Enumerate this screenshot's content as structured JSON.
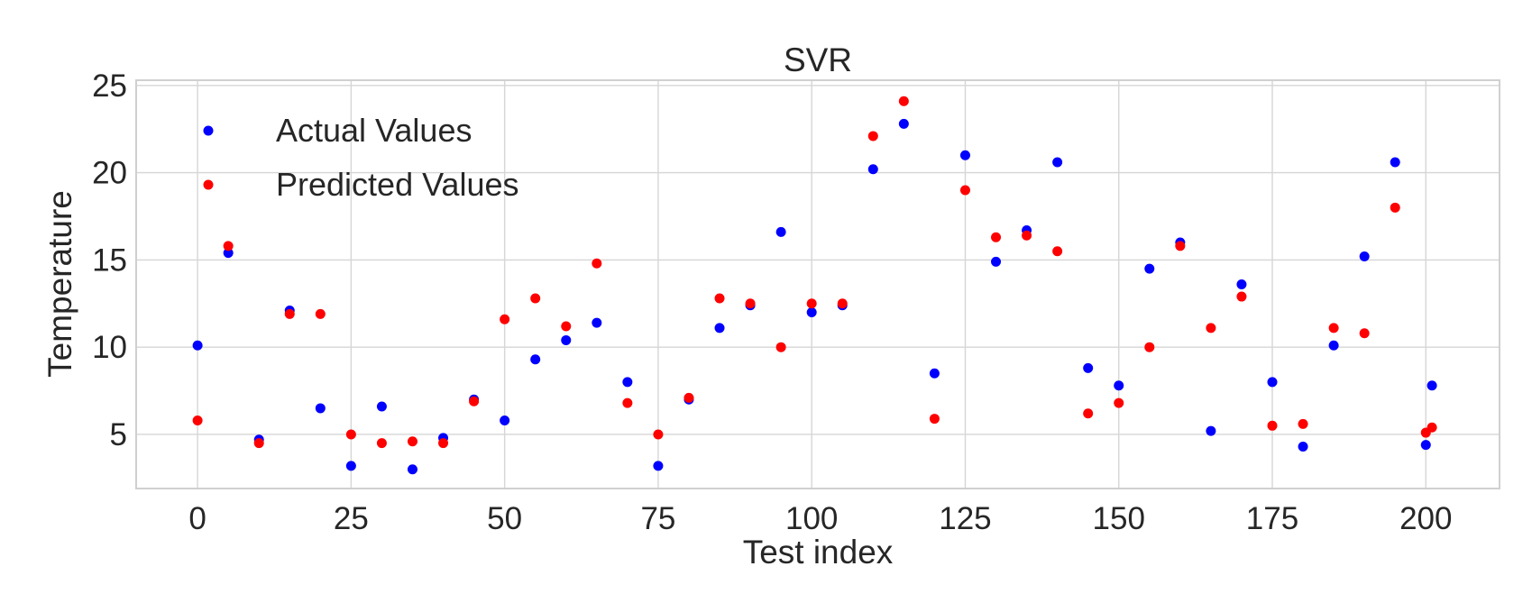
{
  "chart_data": {
    "type": "scatter",
    "title": "SVR",
    "xlabel": "Test index",
    "ylabel": "Temperature",
    "xlim": [
      -10,
      212
    ],
    "ylim": [
      1.9,
      25.3
    ],
    "xticks": [
      0,
      25,
      50,
      75,
      100,
      125,
      150,
      175,
      200
    ],
    "yticks": [
      5,
      10,
      15,
      20,
      25
    ],
    "grid": true,
    "legend_position": "upper-left",
    "series": [
      {
        "name": "Actual Values",
        "color": "#0000ff",
        "points": [
          [
            0,
            10.1
          ],
          [
            5,
            15.4
          ],
          [
            10,
            4.7
          ],
          [
            15,
            12.1
          ],
          [
            20,
            6.5
          ],
          [
            25,
            3.2
          ],
          [
            30,
            6.6
          ],
          [
            35,
            3.0
          ],
          [
            40,
            4.8
          ],
          [
            45,
            7.0
          ],
          [
            50,
            5.8
          ],
          [
            55,
            9.3
          ],
          [
            60,
            10.4
          ],
          [
            65,
            11.4
          ],
          [
            70,
            8.0
          ],
          [
            75,
            3.2
          ],
          [
            80,
            7.0
          ],
          [
            85,
            11.1
          ],
          [
            90,
            12.4
          ],
          [
            95,
            16.6
          ],
          [
            100,
            12.0
          ],
          [
            105,
            12.4
          ],
          [
            110,
            20.2
          ],
          [
            115,
            22.8
          ],
          [
            120,
            8.5
          ],
          [
            125,
            21.0
          ],
          [
            130,
            14.9
          ],
          [
            135,
            16.7
          ],
          [
            140,
            20.6
          ],
          [
            145,
            8.8
          ],
          [
            150,
            7.8
          ],
          [
            155,
            14.5
          ],
          [
            160,
            16.0
          ],
          [
            165,
            5.2
          ],
          [
            170,
            13.6
          ],
          [
            175,
            8.0
          ],
          [
            180,
            4.3
          ],
          [
            185,
            10.1
          ],
          [
            190,
            15.2
          ],
          [
            195,
            20.6
          ],
          [
            200,
            4.4
          ],
          [
            201,
            7.8
          ]
        ]
      },
      {
        "name": "Predicted Values",
        "color": "#ff0000",
        "points": [
          [
            0,
            5.8
          ],
          [
            5,
            15.8
          ],
          [
            10,
            4.5
          ],
          [
            15,
            11.9
          ],
          [
            20,
            11.9
          ],
          [
            25,
            5.0
          ],
          [
            30,
            4.5
          ],
          [
            35,
            4.6
          ],
          [
            40,
            4.5
          ],
          [
            45,
            6.9
          ],
          [
            50,
            11.6
          ],
          [
            55,
            12.8
          ],
          [
            60,
            11.2
          ],
          [
            65,
            14.8
          ],
          [
            70,
            6.8
          ],
          [
            75,
            5.0
          ],
          [
            80,
            7.1
          ],
          [
            85,
            12.8
          ],
          [
            90,
            12.5
          ],
          [
            95,
            10.0
          ],
          [
            100,
            12.5
          ],
          [
            105,
            12.5
          ],
          [
            110,
            22.1
          ],
          [
            115,
            24.1
          ],
          [
            120,
            5.9
          ],
          [
            125,
            19.0
          ],
          [
            130,
            16.3
          ],
          [
            135,
            16.4
          ],
          [
            140,
            15.5
          ],
          [
            145,
            6.2
          ],
          [
            150,
            6.8
          ],
          [
            155,
            10.0
          ],
          [
            160,
            15.8
          ],
          [
            165,
            11.1
          ],
          [
            170,
            12.9
          ],
          [
            175,
            5.5
          ],
          [
            180,
            5.6
          ],
          [
            185,
            11.1
          ],
          [
            190,
            10.8
          ],
          [
            195,
            18.0
          ],
          [
            200,
            5.1
          ],
          [
            201,
            5.4
          ]
        ]
      }
    ]
  }
}
